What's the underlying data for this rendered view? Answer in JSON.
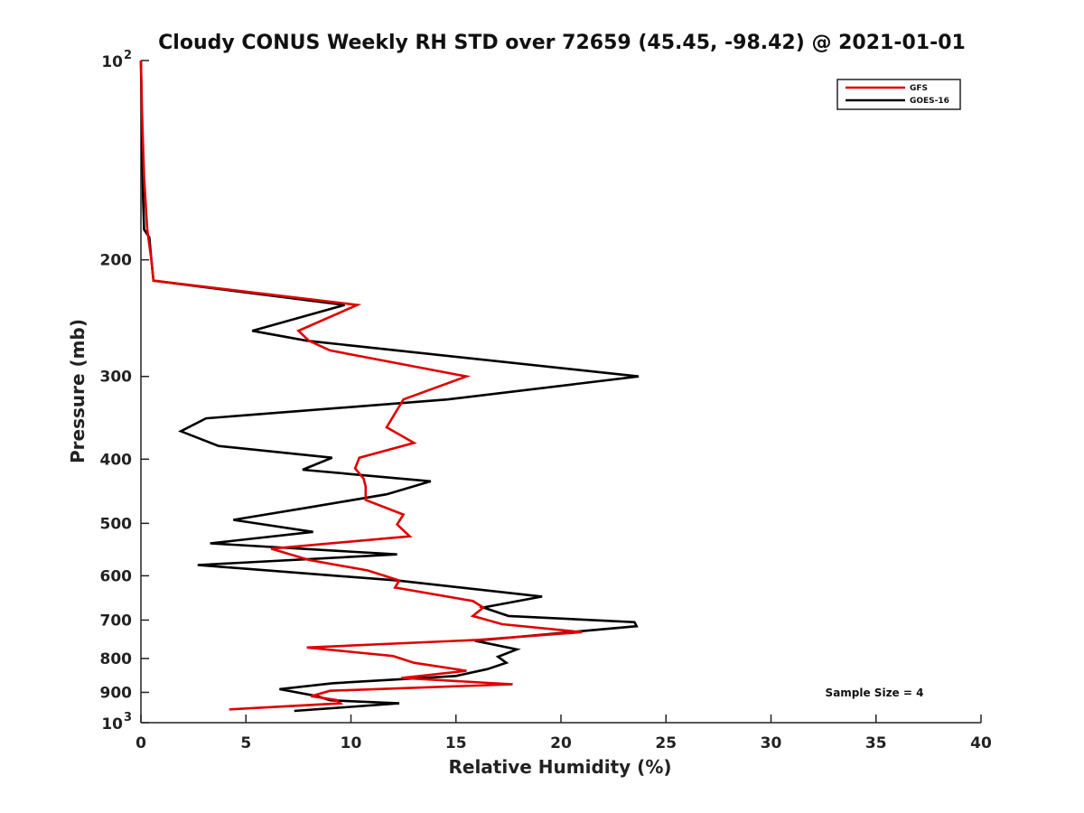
{
  "chart_data": {
    "type": "line",
    "title": "Cloudy CONUS Weekly RH STD over 72659 (45.45, -98.42) @ 2021-01-01",
    "xlabel": "Relative Humidity (%)",
    "ylabel": "Pressure (mb)",
    "xlim": [
      0,
      40
    ],
    "ylim": [
      100,
      1000
    ],
    "y_scale": "log",
    "y_inverted": true,
    "x_ticks": [
      0,
      5,
      10,
      15,
      20,
      25,
      30,
      35,
      40
    ],
    "x_tick_labels": [
      "0",
      "5",
      "10",
      "15",
      "20",
      "25",
      "30",
      "35",
      "40"
    ],
    "y_ticks": [
      100,
      200,
      300,
      400,
      500,
      600,
      700,
      800,
      900,
      1000
    ],
    "y_tick_labels": [
      {
        "base": "10",
        "exp": "2"
      },
      {
        "base": "200",
        "exp": ""
      },
      {
        "base": "300",
        "exp": ""
      },
      {
        "base": "400",
        "exp": ""
      },
      {
        "base": "500",
        "exp": ""
      },
      {
        "base": "600",
        "exp": ""
      },
      {
        "base": "700",
        "exp": ""
      },
      {
        "base": "800",
        "exp": ""
      },
      {
        "base": "900",
        "exp": ""
      },
      {
        "base": "10",
        "exp": "3"
      }
    ],
    "grid": false,
    "legend_position": "top-right",
    "annotation": "Sample Size = 4",
    "series": [
      {
        "name": "GFS",
        "color": "#e00000",
        "points": [
          [
            0.0,
            100
          ],
          [
            0.05,
            120
          ],
          [
            0.15,
            150
          ],
          [
            0.3,
            180
          ],
          [
            0.5,
            200
          ],
          [
            0.6,
            215
          ],
          [
            10.3,
            234
          ],
          [
            7.5,
            256
          ],
          [
            8.0,
            265
          ],
          [
            9.0,
            274
          ],
          [
            15.5,
            300
          ],
          [
            12.5,
            325
          ],
          [
            11.7,
            358
          ],
          [
            13.0,
            378
          ],
          [
            10.4,
            398
          ],
          [
            10.2,
            413
          ],
          [
            10.6,
            428
          ],
          [
            10.7,
            440
          ],
          [
            10.7,
            461
          ],
          [
            12.5,
            485
          ],
          [
            12.2,
            502
          ],
          [
            12.8,
            523
          ],
          [
            6.2,
            546
          ],
          [
            8.0,
            568
          ],
          [
            10.8,
            589
          ],
          [
            12.3,
            610
          ],
          [
            12.1,
            625
          ],
          [
            15.8,
            655
          ],
          [
            16.3,
            670
          ],
          [
            15.8,
            690
          ],
          [
            17.2,
            710
          ],
          [
            21.0,
            730
          ],
          [
            16.0,
            750
          ],
          [
            7.9,
            770
          ],
          [
            12.0,
            793
          ],
          [
            13.0,
            812
          ],
          [
            15.5,
            835
          ],
          [
            12.4,
            856
          ],
          [
            17.7,
            875
          ],
          [
            9.0,
            895
          ],
          [
            8.1,
            912
          ],
          [
            9.3,
            924
          ],
          [
            9.5,
            935
          ],
          [
            4.2,
            955
          ]
        ]
      },
      {
        "name": "GOES-16",
        "color": "#000000",
        "points": [
          [
            0.0,
            100
          ],
          [
            0.05,
            130
          ],
          [
            0.1,
            160
          ],
          [
            0.15,
            180
          ],
          [
            0.4,
            185
          ],
          [
            0.5,
            200
          ],
          [
            0.6,
            215
          ],
          [
            9.7,
            234
          ],
          [
            5.3,
            256
          ],
          [
            7.9,
            265
          ],
          [
            23.7,
            300
          ],
          [
            14.6,
            325
          ],
          [
            3.1,
            347
          ],
          [
            1.9,
            363
          ],
          [
            3.7,
            382
          ],
          [
            9.1,
            398
          ],
          [
            7.7,
            415
          ],
          [
            13.8,
            432
          ],
          [
            11.7,
            452
          ],
          [
            8.0,
            473
          ],
          [
            4.4,
            494
          ],
          [
            8.2,
            515
          ],
          [
            3.3,
            536
          ],
          [
            12.2,
            557
          ],
          [
            2.7,
            578
          ],
          [
            12.2,
            610
          ],
          [
            19.1,
            645
          ],
          [
            16.3,
            670
          ],
          [
            17.5,
            690
          ],
          [
            23.5,
            705
          ],
          [
            23.6,
            715
          ],
          [
            15.9,
            752
          ],
          [
            17.9,
            775
          ],
          [
            17.0,
            795
          ],
          [
            17.4,
            812
          ],
          [
            16.5,
            830
          ],
          [
            15.0,
            850
          ],
          [
            9.1,
            872
          ],
          [
            6.6,
            890
          ],
          [
            8.4,
            912
          ],
          [
            9.0,
            925
          ],
          [
            12.3,
            935
          ],
          [
            7.3,
            960
          ]
        ]
      }
    ]
  }
}
